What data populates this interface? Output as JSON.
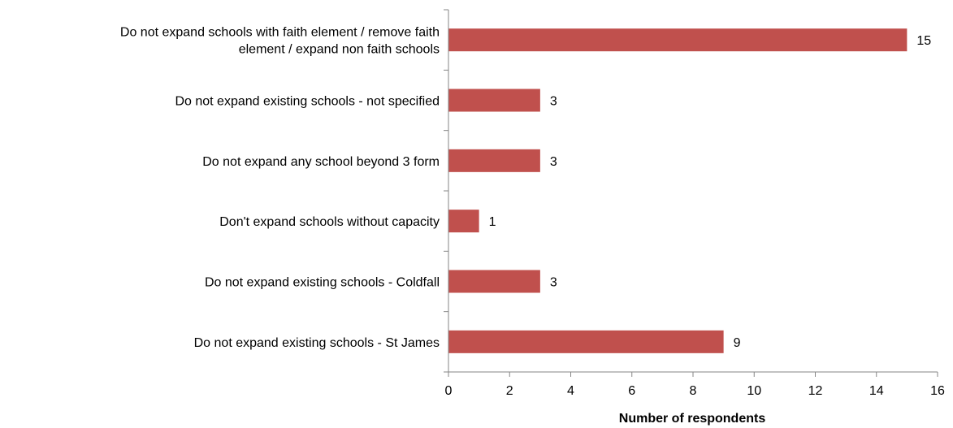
{
  "chart_data": {
    "type": "bar",
    "orientation": "horizontal",
    "categories": [
      [
        "Do not expand schools with faith element / remove faith",
        "element / expand non faith schools"
      ],
      [
        "Do not expand existing schools - not specified"
      ],
      [
        "Do not expand any school beyond 3 form"
      ],
      [
        "Don't expand schools without capacity"
      ],
      [
        "Do not expand existing schools - Coldfall"
      ],
      [
        "Do not expand existing schools - St James"
      ]
    ],
    "values": [
      15,
      3,
      3,
      1,
      3,
      9
    ],
    "data_labels": [
      "15",
      "3",
      "3",
      "1",
      "3",
      "9"
    ],
    "xlabel": "Number of respondents",
    "ylabel": "",
    "title": "",
    "xlim": [
      0,
      16
    ],
    "xticks": [
      0,
      2,
      4,
      6,
      8,
      10,
      12,
      14,
      16
    ],
    "xtick_labels": [
      "0",
      "2",
      "4",
      "6",
      "8",
      "10",
      "12",
      "14",
      "16"
    ],
    "grid": false,
    "legend": "none",
    "bar_color": "#c0504d"
  }
}
